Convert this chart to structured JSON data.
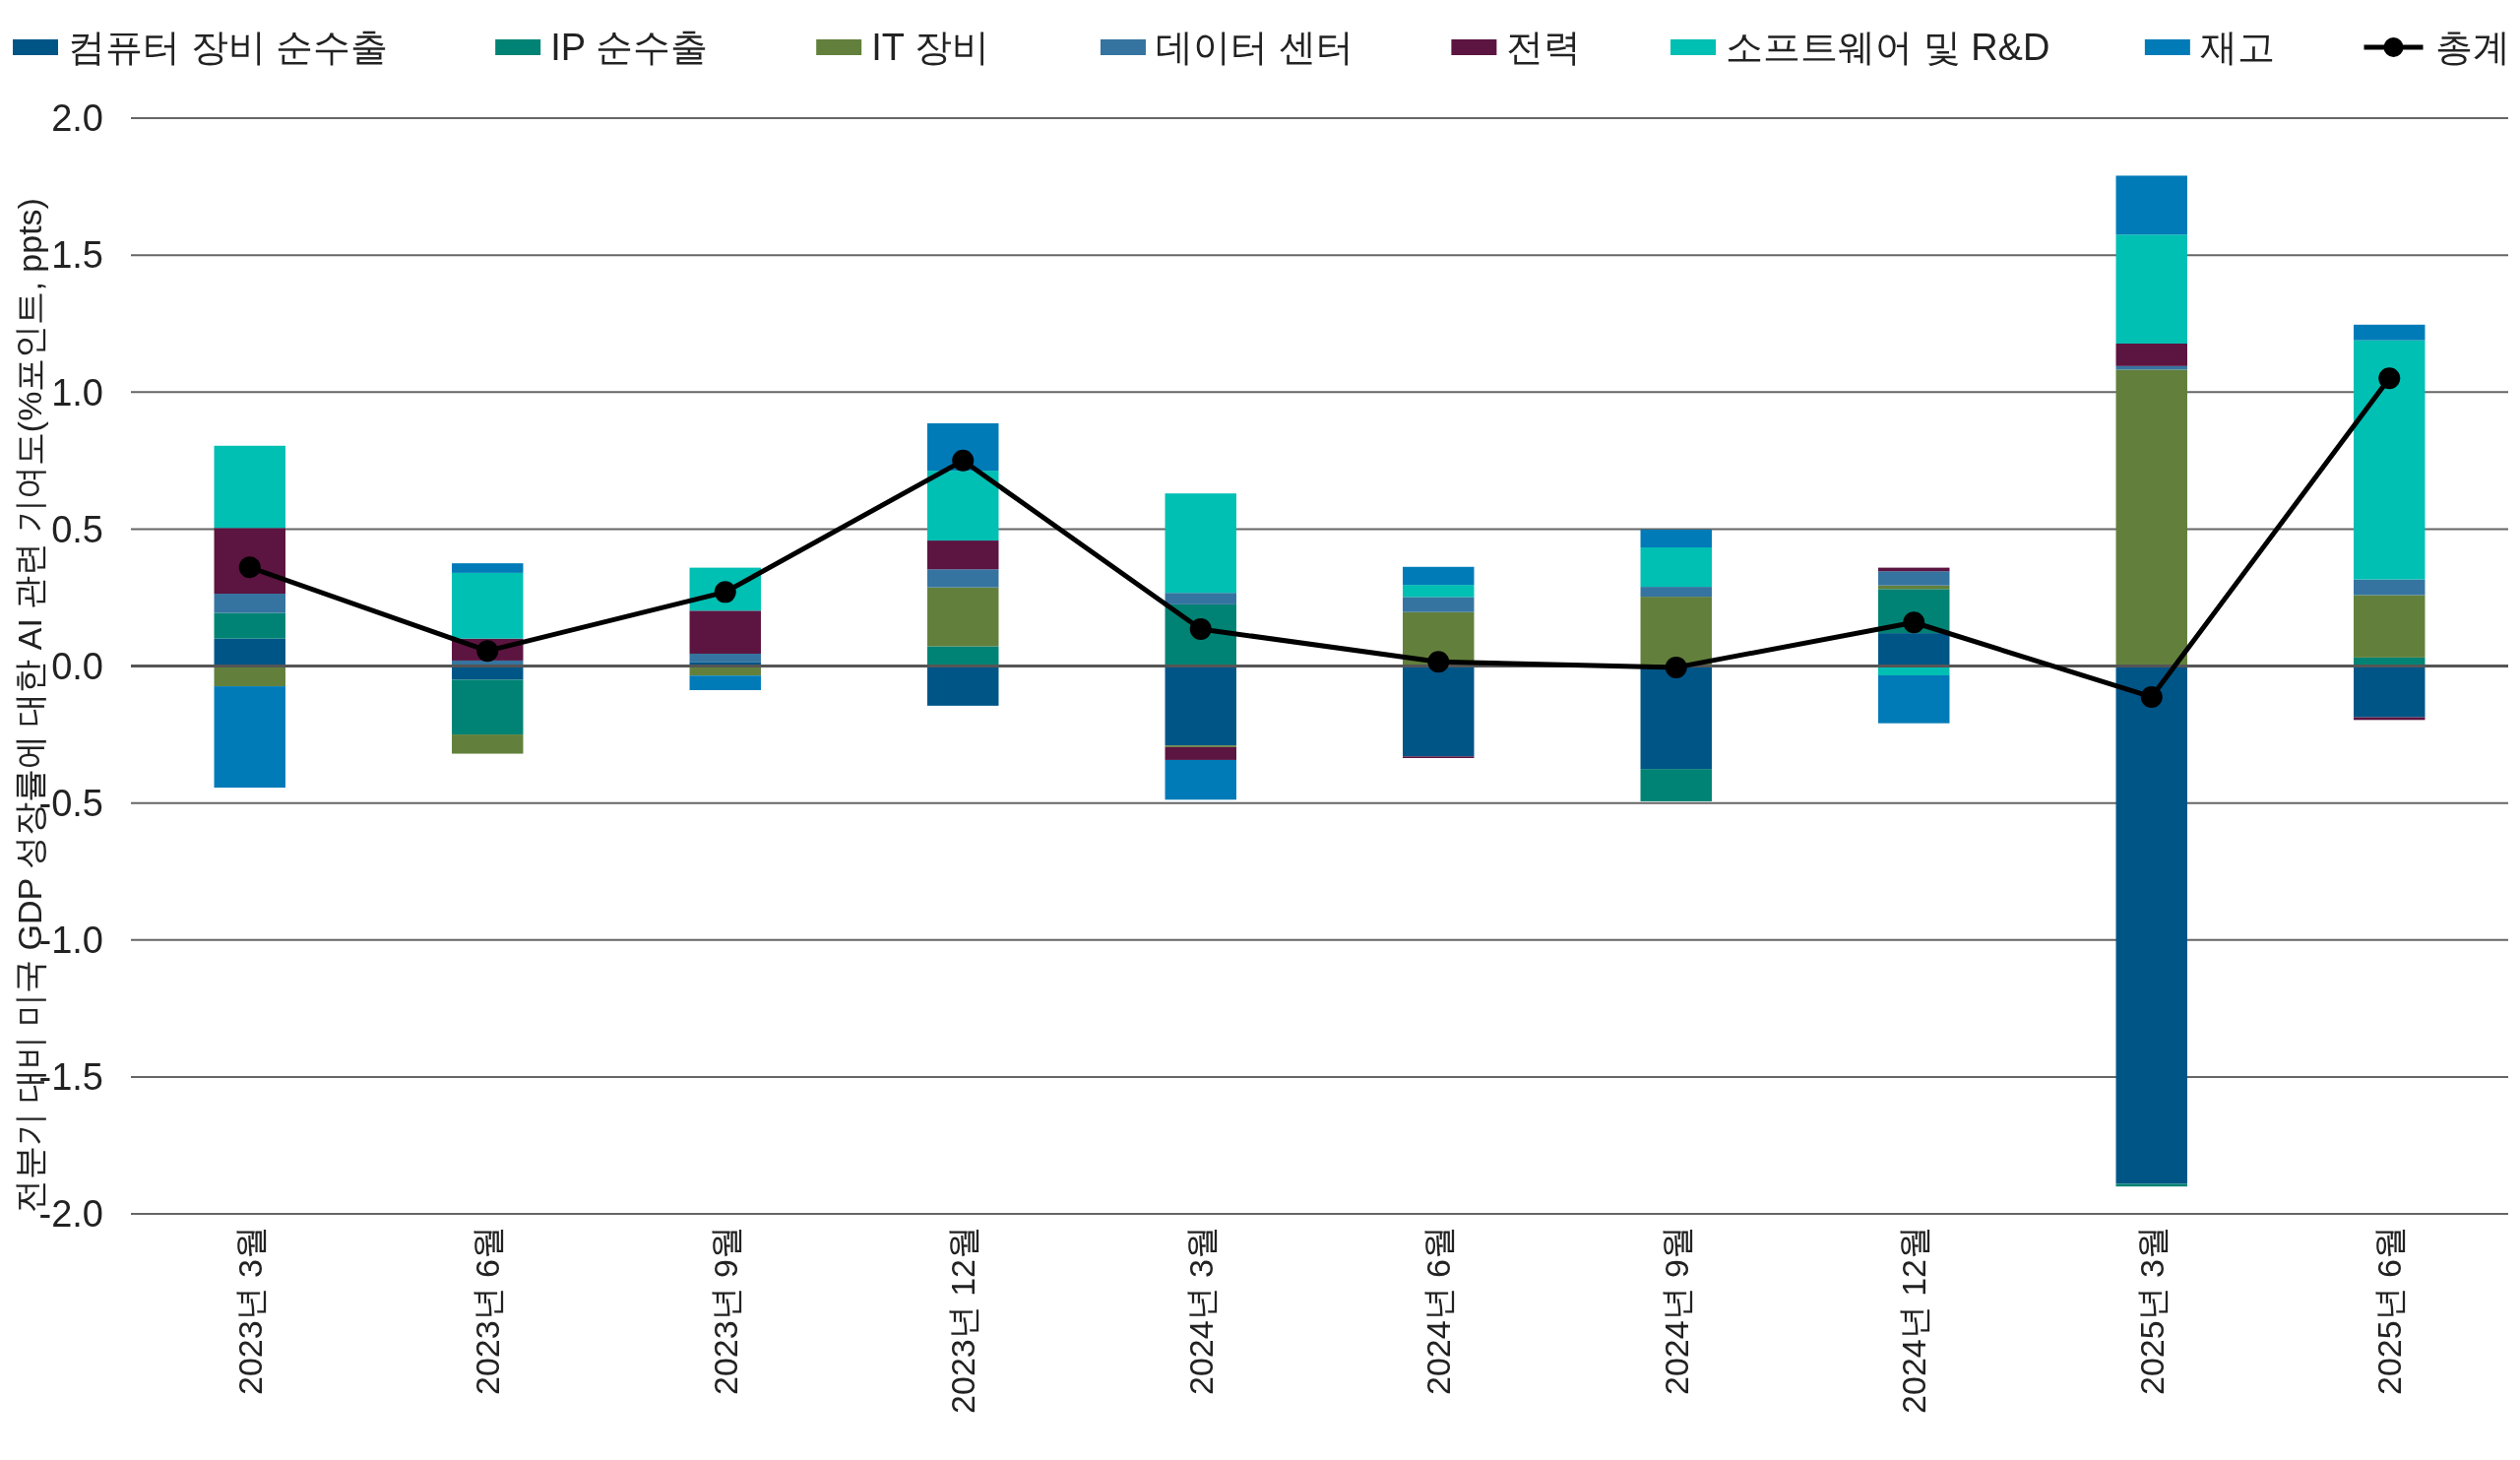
{
  "chart_data": {
    "type": "bar",
    "stacked": true,
    "ylabel": "전분기 대비 미국 GDP 성장률에 대한 AI 관련 기여도(%포인트, ppts)",
    "categories": [
      "2023년 3월",
      "2023년 6월",
      "2023년 9월",
      "2023년 12월",
      "2024년 3월",
      "2024년 6월",
      "2024년 9월",
      "2024년 12월",
      "2025년 3월",
      "2025년 6월"
    ],
    "series": [
      {
        "name": "컴퓨터 장비 순수출",
        "color": "#005587",
        "values": [
          0.1,
          -0.05,
          0.015,
          -0.145,
          -0.29,
          -0.33,
          -0.376,
          0.12,
          -1.89,
          -0.187
        ]
      },
      {
        "name": "IP 순수출",
        "color": "#008374",
        "values": [
          0.094,
          -0.2,
          0,
          0.072,
          0.225,
          0,
          -0.118,
          0.161,
          -0.01,
          0.031
        ]
      },
      {
        "name": "IT 장비",
        "color": "#62803c",
        "values": [
          -0.074,
          -0.07,
          -0.035,
          0.215,
          -0.006,
          0.197,
          0.253,
          0.013,
          1.082,
          0.228
        ]
      },
      {
        "name": "데이터 센터",
        "color": "#3574a0",
        "values": [
          0.07,
          0.02,
          0.03,
          0.066,
          0.042,
          0.055,
          0.036,
          0.052,
          0.013,
          0.057
        ]
      },
      {
        "name": "전력",
        "color": "#5c1440",
        "values": [
          0.24,
          0.08,
          0.157,
          0.105,
          -0.047,
          -0.006,
          0,
          0.013,
          0.082,
          -0.01
        ]
      },
      {
        "name": "소프트웨어 및 R&D",
        "color": "#00bfb3",
        "values": [
          0.3,
          0.24,
          0.157,
          0.255,
          0.363,
          0.044,
          0.144,
          -0.034,
          0.398,
          0.873
        ]
      },
      {
        "name": "재고",
        "color": "#007bb8",
        "values": [
          -0.37,
          0.035,
          -0.053,
          0.173,
          -0.145,
          0.066,
          0.065,
          -0.175,
          0.215,
          0.057
        ]
      },
      {
        "name": "총계",
        "type": "line",
        "color": "#000000",
        "marker": "circle",
        "values": [
          0.36,
          0.055,
          0.27,
          0.75,
          0.135,
          0.015,
          -0.005,
          0.159,
          -0.113,
          1.05
        ]
      }
    ],
    "ylim": [
      -2,
      2
    ],
    "yticks": [
      {
        "value": -2,
        "label": "-2.0"
      },
      {
        "value": -1.5,
        "label": "-1.5"
      },
      {
        "value": -1,
        "label": "-1.0"
      },
      {
        "value": -0.5,
        "label": "-0.5"
      },
      {
        "value": 0,
        "label": "0.0"
      },
      {
        "value": 0.5,
        "label": "0.5"
      },
      {
        "value": 1,
        "label": "1.0"
      },
      {
        "value": 1.5,
        "label": "1.5"
      },
      {
        "value": 2,
        "label": "2.0"
      }
    ],
    "grid": "y",
    "legend": "top"
  }
}
